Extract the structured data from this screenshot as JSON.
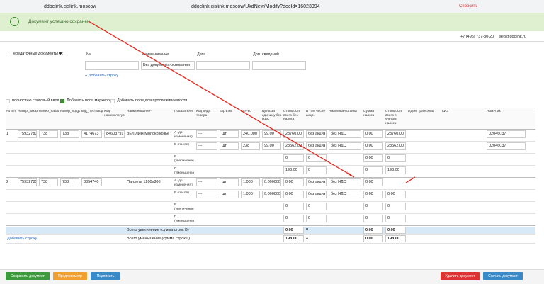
{
  "browser": {
    "site": "ddoclink.cislink.moscow",
    "url": "ddoclink.cislink.moscow/UkdNew/Modify?docId=16023994",
    "ask": "Спросить"
  },
  "notice": "Документ успешно сохранен",
  "contacts": {
    "phone": "+7 (495) 737-30-20",
    "email": "sed@doclink.ru"
  },
  "transfer": {
    "label": "Передаточные документы ✱:",
    "columns": [
      "№",
      "Наименование",
      "Дата",
      "Доп. сведений"
    ],
    "name_value": "Без документа-основания",
    "add_row": "Добавить строку"
  },
  "options": [
    "полностью спотовый ввод",
    "Добавить поля маркировки",
    "Добавить поле для прослеживаемости"
  ],
  "table": {
    "headers": [
      "№ п/п",
      "номер_заказа",
      "номер_накладной",
      "номер_подразделения",
      "код_поставщика",
      "Код номенклатуры",
      "Наименование*",
      "Показатели",
      "Код вида товара",
      "Ед. изм.",
      "Кол-во",
      "Цена за единицу без НДС",
      "Стоимость всего без налога",
      "В том числе акциз",
      "Налоговая ставка",
      "Сумма налога",
      "Стоимость всего с учетом налога",
      "ИдентТрансУпак",
      "КИЗ",
      "НомУпак"
    ],
    "rows": [
      {
        "num": "1",
        "order": "75932780",
        "invoice": "738",
        "dept": "738",
        "supplier": "4174673",
        "code": "84603791",
        "name": "ЗЕЛ ЛИН Молоко козье t",
        "sub": [
          {
            "indicator": "А (до изменения)",
            "kind": "---",
            "unit": "шт",
            "qty": "240.000",
            "price": "99.00",
            "cost": "23760.00",
            "excise": "без акциз",
            "rate": "без НДС",
            "tax": "0.00",
            "total": "23760.00",
            "pack": "02046037"
          },
          {
            "indicator": "Б (после)",
            "kind": "---",
            "unit": "шт",
            "qty": "238",
            "price": "99.00",
            "cost": "23562.00",
            "excise": "без акциз",
            "rate": "без НДС",
            "tax": "0.00",
            "total": "23562.00",
            "pack": "02046037"
          },
          {
            "indicator": "В (увеличение)",
            "cost": "0",
            "excise": "0",
            "tax": "0.00",
            "total": "0"
          },
          {
            "indicator": "Г (уменьшение)",
            "cost": "198.00",
            "excise": "0",
            "tax": "0",
            "total": "198.00"
          }
        ]
      },
      {
        "num": "2",
        "order": "75932780",
        "invoice": "738",
        "dept": "738",
        "supplier": "3354740",
        "name": "Паллета 1200х800",
        "sub": [
          {
            "indicator": "А (до изменения)",
            "kind": "---",
            "unit": "шт",
            "qty": "1.000",
            "price": "0.000000",
            "cost": "0.00",
            "excise": "без акциз",
            "rate": "без НДС",
            "tax": "0.00"
          },
          {
            "indicator": "Б (после)",
            "kind": "---",
            "unit": "шт",
            "qty": "1.000",
            "price": "0.000000",
            "cost": "0.00",
            "excise": "без акциз",
            "rate": "без НДС",
            "tax": "0.00",
            "total": "0.00"
          },
          {
            "indicator": "В (увеличение)",
            "cost": "0",
            "excise": "0",
            "tax": "0",
            "total": "0"
          },
          {
            "indicator": "Г (уменьшение)",
            "cost": "0",
            "excise": "0",
            "tax": "0",
            "total": "0"
          }
        ]
      }
    ],
    "totals": [
      {
        "label": "Всего увеличение (сумма строк В)",
        "cost": "0.00",
        "excise": "x",
        "tax": "0.00",
        "total": "0.00"
      },
      {
        "label": "Всего уменьшение (сумма строк Г)",
        "cost": "198.00",
        "excise": "x",
        "tax": "0.00",
        "total": "198.00"
      }
    ],
    "add_row": "Добавить строку"
  },
  "actions": {
    "left": [
      "Сохранить документ",
      "Предпросмотр",
      "Подписать"
    ],
    "right": [
      "Удалить документ",
      "Скачать документ"
    ]
  }
}
